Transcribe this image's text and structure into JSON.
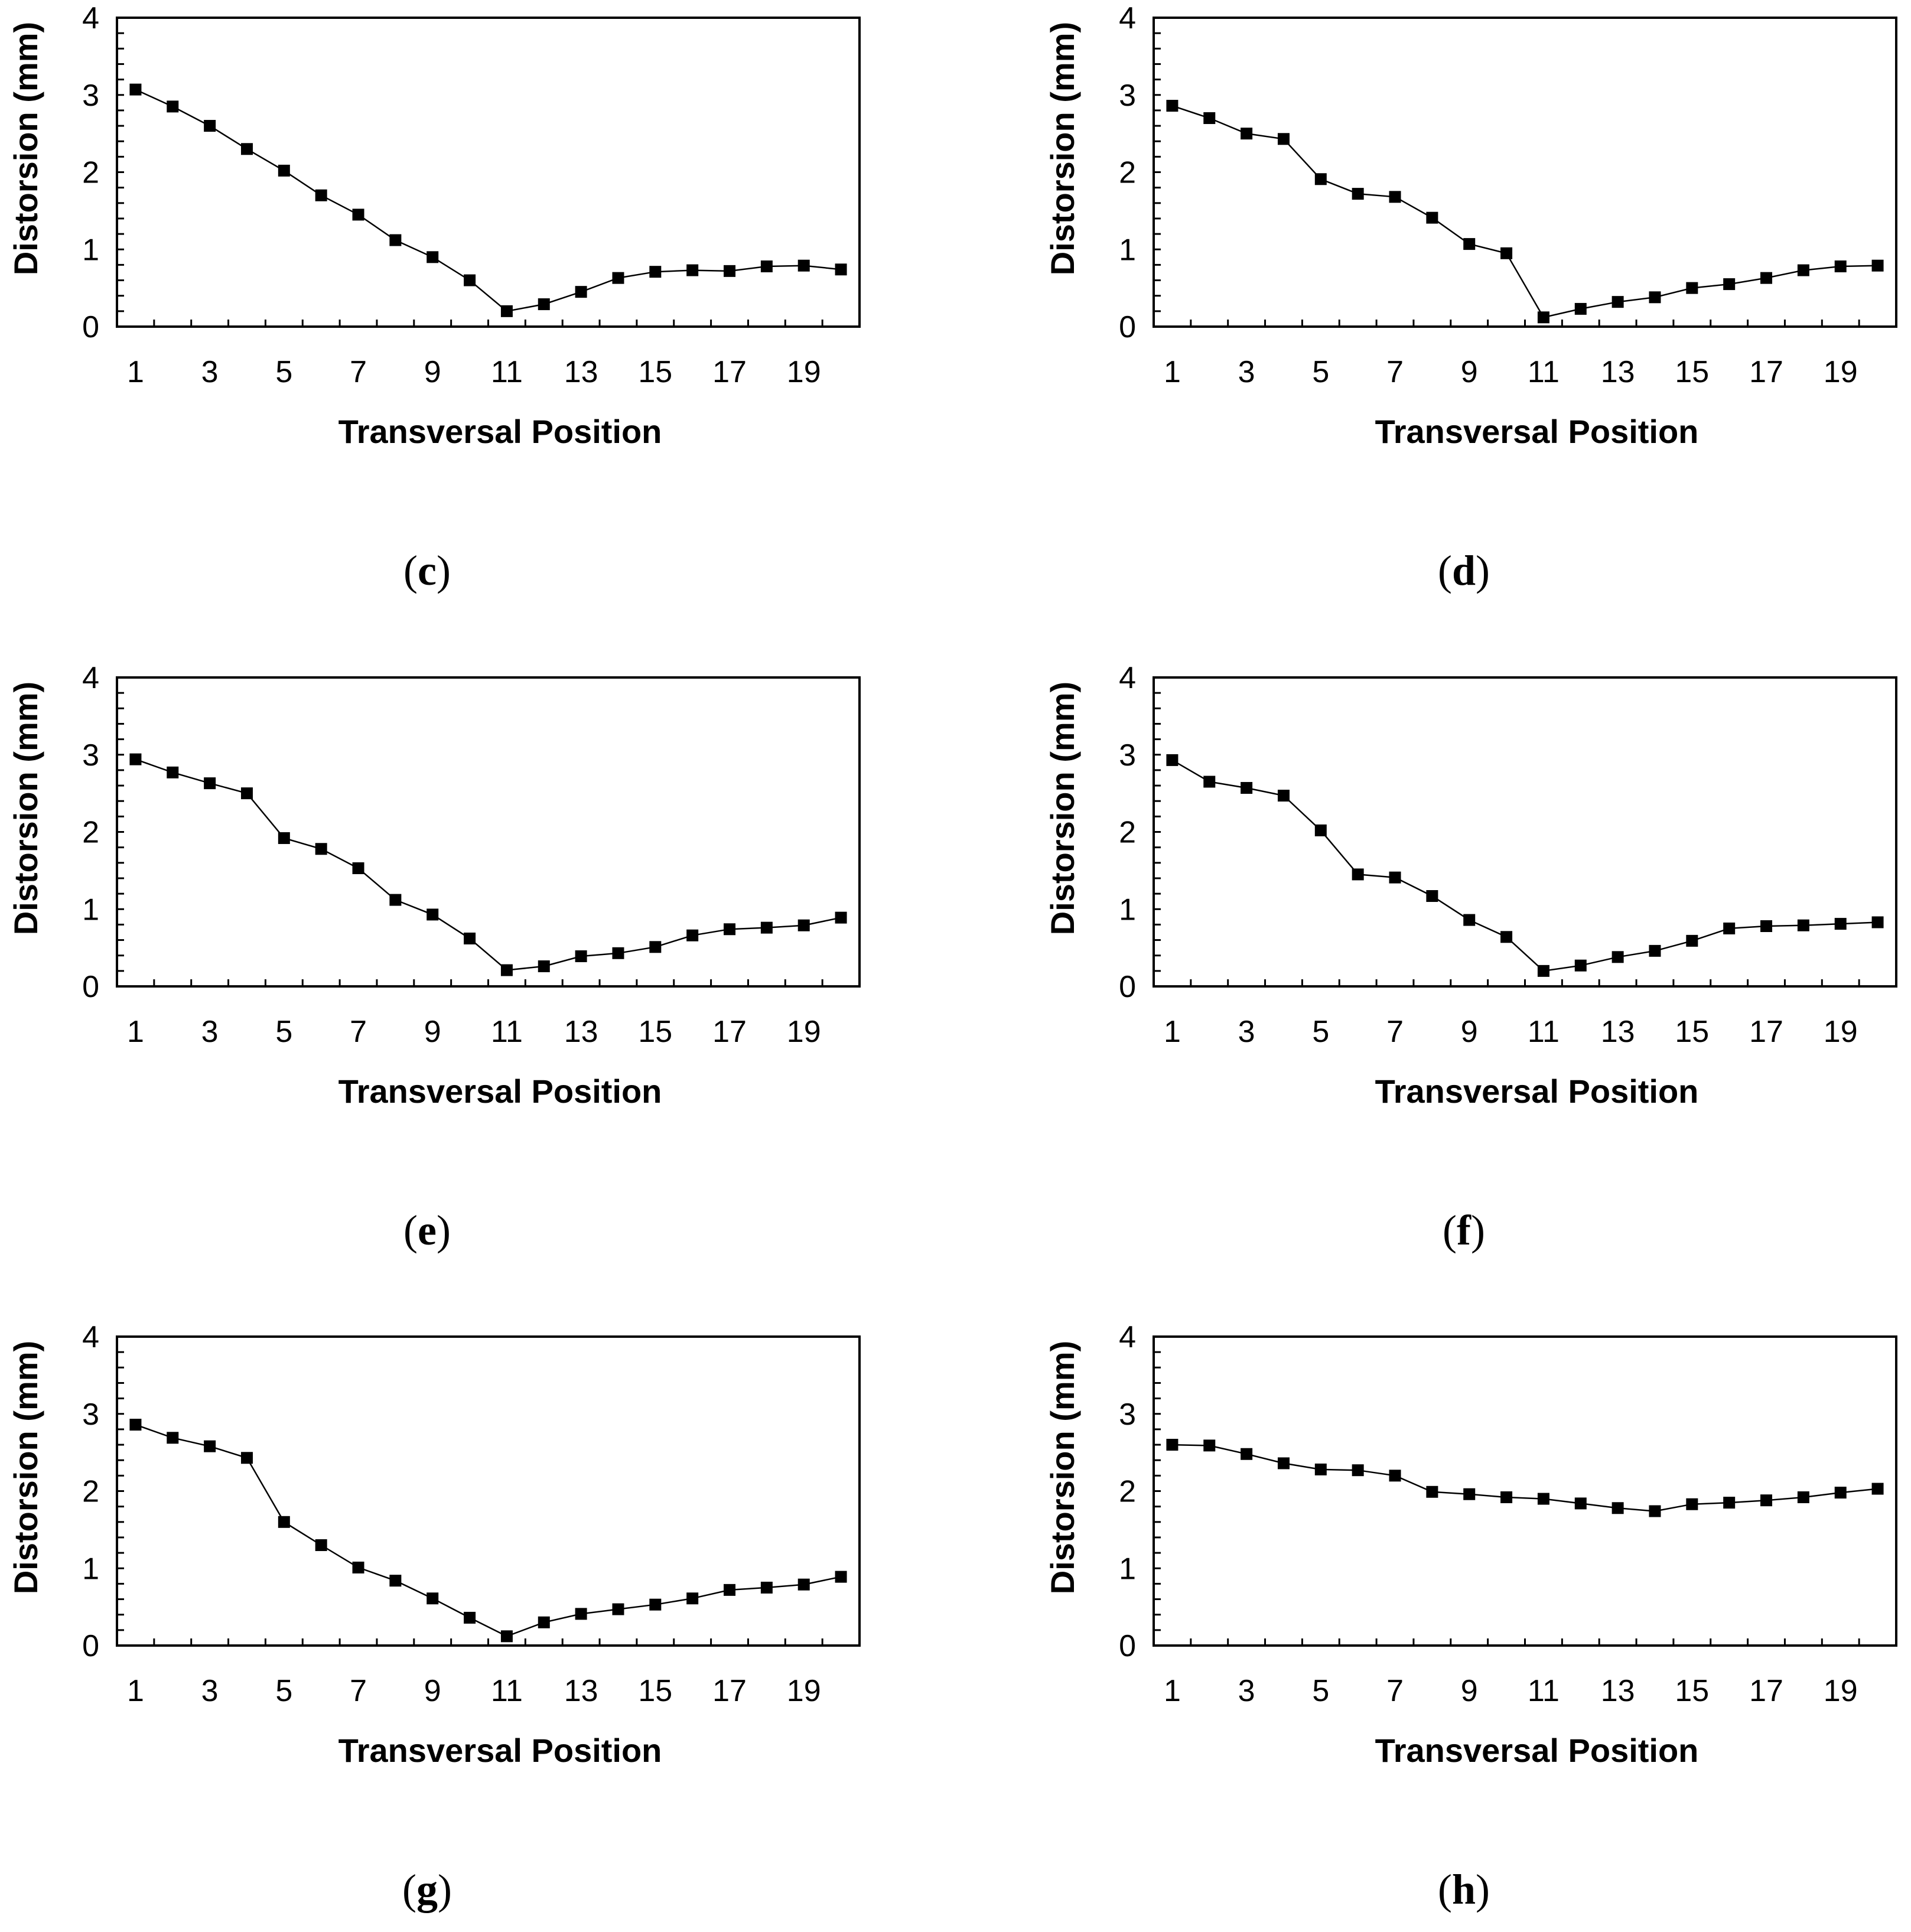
{
  "chart_data": [
    {
      "type": "line",
      "panel": "c",
      "caption": "(c)",
      "xlabel": "Transversal Position",
      "ylabel": "Distorsion (mm)",
      "ylim": [
        0,
        4
      ],
      "xlim": [
        1,
        20
      ],
      "yticks": [
        0,
        1,
        2,
        3,
        4
      ],
      "xticks": [
        1,
        3,
        5,
        7,
        9,
        11,
        13,
        15,
        17,
        19
      ],
      "marker": "square",
      "x": [
        1,
        2,
        3,
        4,
        5,
        6,
        7,
        8,
        9,
        10,
        11,
        12,
        13,
        14,
        15,
        16,
        17,
        18,
        19,
        20
      ],
      "values": [
        3.07,
        2.85,
        2.6,
        2.3,
        2.02,
        1.7,
        1.45,
        1.12,
        0.9,
        0.6,
        0.2,
        0.29,
        0.45,
        0.63,
        0.71,
        0.73,
        0.72,
        0.78,
        0.79,
        0.74
      ]
    },
    {
      "type": "line",
      "panel": "d",
      "caption": "(d)",
      "xlabel": "Transversal Position",
      "ylabel": "Distorsion (mm)",
      "ylim": [
        0,
        4
      ],
      "xlim": [
        1,
        20
      ],
      "yticks": [
        0,
        1,
        2,
        3,
        4
      ],
      "xticks": [
        1,
        3,
        5,
        7,
        9,
        11,
        13,
        15,
        17,
        19
      ],
      "marker": "square",
      "x": [
        1,
        2,
        3,
        4,
        5,
        6,
        7,
        8,
        9,
        10,
        11,
        12,
        13,
        14,
        15,
        16,
        17,
        18,
        19,
        20
      ],
      "values": [
        2.86,
        2.7,
        2.5,
        2.43,
        1.91,
        1.72,
        1.68,
        1.41,
        1.07,
        0.95,
        0.12,
        0.23,
        0.32,
        0.38,
        0.5,
        0.55,
        0.63,
        0.73,
        0.78,
        0.79
      ]
    },
    {
      "type": "line",
      "panel": "e",
      "caption": "(e)",
      "xlabel": "Transversal Position",
      "ylabel": "Distorsion (mm)",
      "ylim": [
        0,
        4
      ],
      "xlim": [
        1,
        20
      ],
      "yticks": [
        0,
        1,
        2,
        3,
        4
      ],
      "xticks": [
        1,
        3,
        5,
        7,
        9,
        11,
        13,
        15,
        17,
        19
      ],
      "marker": "square",
      "x": [
        1,
        2,
        3,
        4,
        5,
        6,
        7,
        8,
        9,
        10,
        11,
        12,
        13,
        14,
        15,
        16,
        17,
        18,
        19,
        20
      ],
      "values": [
        2.94,
        2.77,
        2.63,
        2.5,
        1.92,
        1.78,
        1.53,
        1.12,
        0.93,
        0.62,
        0.21,
        0.26,
        0.39,
        0.43,
        0.51,
        0.66,
        0.74,
        0.76,
        0.79,
        0.89
      ]
    },
    {
      "type": "line",
      "panel": "f",
      "caption": "(f)",
      "xlabel": "Transversal Position",
      "ylabel": "Distorsion (mm)",
      "ylim": [
        0,
        4
      ],
      "xlim": [
        1,
        20
      ],
      "yticks": [
        0,
        1,
        2,
        3,
        4
      ],
      "xticks": [
        1,
        3,
        5,
        7,
        9,
        11,
        13,
        15,
        17,
        19
      ],
      "marker": "square",
      "x": [
        1,
        2,
        3,
        4,
        5,
        6,
        7,
        8,
        9,
        10,
        11,
        12,
        13,
        14,
        15,
        16,
        17,
        18,
        19,
        20
      ],
      "values": [
        2.93,
        2.65,
        2.57,
        2.47,
        2.02,
        1.45,
        1.41,
        1.17,
        0.86,
        0.64,
        0.2,
        0.27,
        0.38,
        0.46,
        0.59,
        0.75,
        0.78,
        0.79,
        0.81,
        0.83
      ]
    },
    {
      "type": "line",
      "panel": "g",
      "caption": "(g)",
      "xlabel": "Transversal Position",
      "ylabel": "Distorsion (mm)",
      "ylim": [
        0,
        4
      ],
      "xlim": [
        1,
        20
      ],
      "yticks": [
        0,
        1,
        2,
        3,
        4
      ],
      "xticks": [
        1,
        3,
        5,
        7,
        9,
        11,
        13,
        15,
        17,
        19
      ],
      "marker": "square",
      "x": [
        1,
        2,
        3,
        4,
        5,
        6,
        7,
        8,
        9,
        10,
        11,
        12,
        13,
        14,
        15,
        16,
        17,
        18,
        19,
        20
      ],
      "values": [
        2.86,
        2.69,
        2.58,
        2.43,
        1.6,
        1.3,
        1.01,
        0.84,
        0.61,
        0.36,
        0.12,
        0.3,
        0.41,
        0.47,
        0.53,
        0.61,
        0.72,
        0.75,
        0.79,
        0.89
      ]
    },
    {
      "type": "line",
      "panel": "h",
      "caption": "(h)",
      "xlabel": "Transversal Position",
      "ylabel": "Distorsion (mm)",
      "ylim": [
        0,
        4
      ],
      "xlim": [
        1,
        20
      ],
      "yticks": [
        0,
        1,
        2,
        3,
        4
      ],
      "xticks": [
        1,
        3,
        5,
        7,
        9,
        11,
        13,
        15,
        17,
        19
      ],
      "marker": "square",
      "x": [
        1,
        2,
        3,
        4,
        5,
        6,
        7,
        8,
        9,
        10,
        11,
        12,
        13,
        14,
        15,
        16,
        17,
        18,
        19,
        20
      ],
      "values": [
        2.6,
        2.59,
        2.48,
        2.36,
        2.28,
        2.27,
        2.2,
        1.99,
        1.96,
        1.92,
        1.9,
        1.84,
        1.78,
        1.74,
        1.83,
        1.85,
        1.88,
        1.92,
        1.98,
        2.03
      ]
    }
  ],
  "style": {
    "line_color": "#000000",
    "marker_color": "#000000",
    "axis_color": "#000000",
    "background": "#ffffff"
  }
}
